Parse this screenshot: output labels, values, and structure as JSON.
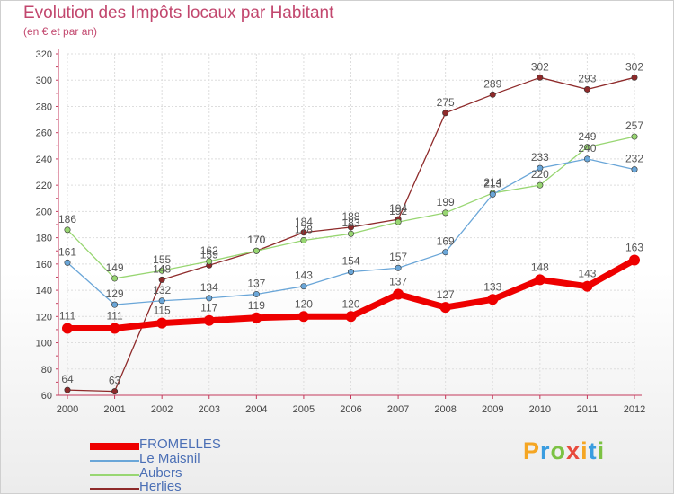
{
  "chart_data": {
    "type": "line",
    "title": "Evolution des Impôts locaux par Habitant",
    "subtitle": "(en € et par an)",
    "x": [
      "2000",
      "2001",
      "2002",
      "2003",
      "2004",
      "2005",
      "2006",
      "2007",
      "2008",
      "2009",
      "2010",
      "2011",
      "2012"
    ],
    "yticks": [
      60,
      80,
      100,
      120,
      140,
      160,
      180,
      200,
      220,
      240,
      260,
      280,
      300,
      320
    ],
    "ylim": [
      60,
      320
    ],
    "grid": true,
    "legend_position": "bottom-left",
    "series": [
      {
        "name": "Herlies",
        "color": "#8e2a2a",
        "width": 1.3,
        "values": [
          64,
          63,
          148,
          159,
          170,
          184,
          188,
          194,
          275,
          289,
          302,
          293,
          302
        ]
      },
      {
        "name": "Aubers",
        "color": "#98d672",
        "width": 1.3,
        "values": [
          186,
          149,
          155,
          162,
          170,
          178,
          183,
          192,
          199,
          214,
          220,
          249,
          257
        ]
      },
      {
        "name": "Le Maisnil",
        "color": "#6aa6d8",
        "width": 1.3,
        "values": [
          161,
          129,
          132,
          134,
          137,
          143,
          154,
          157,
          169,
          213,
          233,
          240,
          232
        ]
      },
      {
        "name": "FROMELLES",
        "color": "#ee0000",
        "width": 7,
        "values": [
          111,
          111,
          115,
          117,
          119,
          120,
          120,
          137,
          127,
          133,
          148,
          143,
          163
        ]
      }
    ],
    "legend": [
      {
        "name": "FROMELLES",
        "color": "#ee0000",
        "thickness": 8
      },
      {
        "name": "Le Maisnil",
        "color": "#6aa6d8",
        "thickness": 2
      },
      {
        "name": "Aubers",
        "color": "#98d672",
        "thickness": 2
      },
      {
        "name": "Herlies",
        "color": "#8e2a2a",
        "thickness": 2
      }
    ]
  },
  "logo": {
    "text": "Proxiti",
    "letters": [
      {
        "ch": "P",
        "color": "#f5a623"
      },
      {
        "ch": "r",
        "color": "#3a9de0"
      },
      {
        "ch": "o",
        "color": "#7cc243"
      },
      {
        "ch": "x",
        "color": "#e84a3c"
      },
      {
        "ch": "i",
        "color": "#f5a623"
      },
      {
        "ch": "t",
        "color": "#3a9de0"
      },
      {
        "ch": "i",
        "color": "#7cc243"
      }
    ]
  }
}
